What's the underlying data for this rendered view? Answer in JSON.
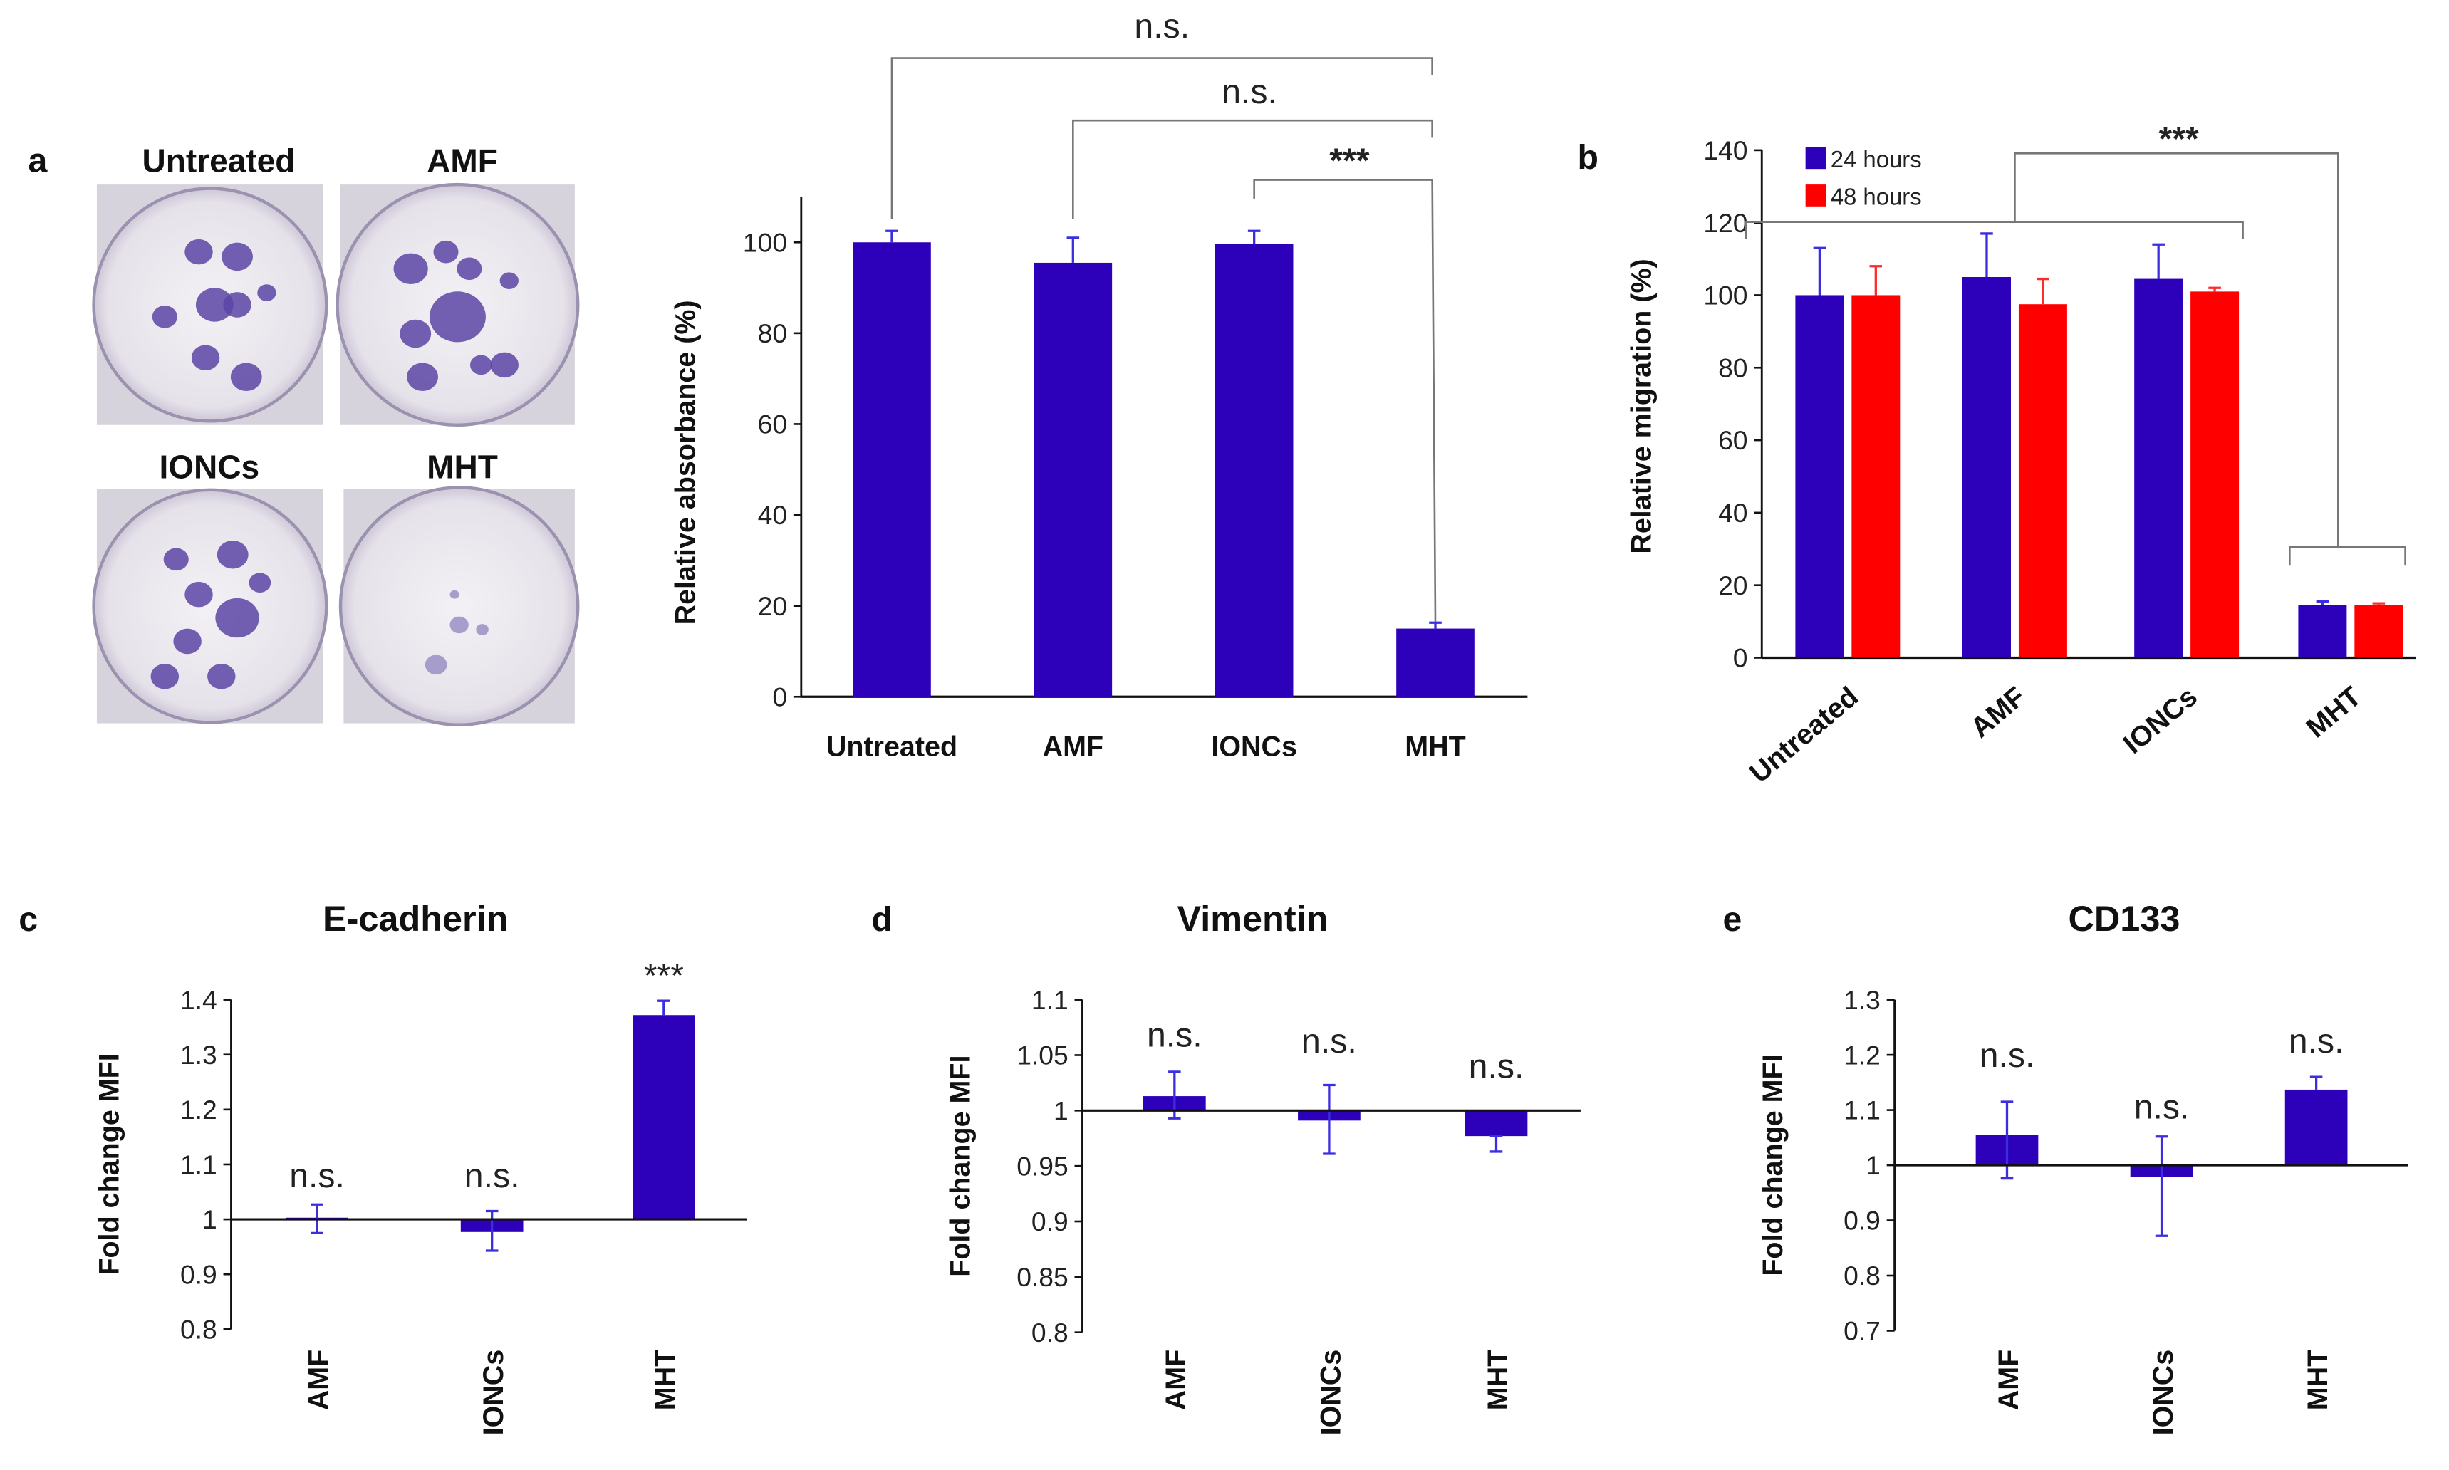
{
  "panel_labels": {
    "a": "a",
    "b": "b",
    "c": "c",
    "d": "d",
    "e": "e"
  },
  "photos": {
    "labels": [
      "Untreated",
      "AMF",
      "IONCs",
      "MHT"
    ]
  },
  "colors": {
    "blue": "#2d00b9",
    "red": "#ff0000",
    "error_blue": "#3b2ee0",
    "error_red": "#ff2a2a"
  },
  "chart_data": [
    {
      "id": "a",
      "type": "bar",
      "categories": [
        "Untreated",
        "AMF",
        "IONCs",
        "MHT"
      ],
      "values": [
        100,
        95.5,
        99.7,
        15
      ],
      "errors_upper": [
        102.5,
        101,
        102.5,
        16.3
      ],
      "ylabel": "Relative absorbance  (%)",
      "yticks": [
        0,
        20,
        40,
        60,
        80,
        100
      ],
      "ylim": [
        0,
        110
      ],
      "comparisons": [
        {
          "from": "Untreated",
          "to": "MHT",
          "label": "n.s."
        },
        {
          "from": "AMF",
          "to": "MHT",
          "label": "n.s."
        },
        {
          "from": "IONCs",
          "to": "MHT",
          "label": "***"
        }
      ]
    },
    {
      "id": "b",
      "type": "bar",
      "categories": [
        "Untreated",
        "AMF",
        "IONCs",
        "MHT"
      ],
      "series": [
        {
          "name": "24 hours",
          "color": "#2d00b9",
          "values": [
            100,
            105,
            104.5,
            14.5
          ],
          "errors_upper": [
            113,
            117,
            114,
            15.5
          ]
        },
        {
          "name": "48 hours",
          "color": "#ff0000",
          "values": [
            100,
            97.5,
            101,
            14.5
          ],
          "errors_upper": [
            108,
            104.5,
            102,
            15
          ]
        }
      ],
      "ylabel": "Relative migration (%)",
      "yticks": [
        0,
        20,
        40,
        60,
        80,
        100,
        120,
        140
      ],
      "ylim": [
        0,
        140
      ],
      "legend": "top-left",
      "comparisons": [
        {
          "from": "Untreated, AMF, IONCs",
          "to": "MHT",
          "label": "***"
        }
      ]
    },
    {
      "id": "c",
      "type": "bar",
      "title": "E-cadherin",
      "categories": [
        "AMF",
        "IONCs",
        "MHT"
      ],
      "baseline": 1,
      "values": [
        1.003,
        0.977,
        1.372
      ],
      "errors": [
        [
          0.975,
          1.027
        ],
        [
          0.943,
          1.015
        ],
        [
          1.372,
          1.398
        ]
      ],
      "significance": [
        "n.s.",
        "n.s.",
        "***"
      ],
      "ylabel": "Fold change MFI",
      "yticks": [
        0.8,
        0.9,
        1,
        1.1,
        1.2,
        1.3,
        1.4
      ],
      "ylim": [
        0.8,
        1.4
      ]
    },
    {
      "id": "d",
      "type": "bar",
      "title": "Vimentin",
      "categories": [
        "AMF",
        "IONCs",
        "MHT"
      ],
      "baseline": 1,
      "values": [
        1.013,
        0.991,
        0.977
      ],
      "errors": [
        [
          0.993,
          1.035
        ],
        [
          0.961,
          1.023
        ],
        [
          0.963,
          0.977
        ]
      ],
      "significance": [
        "n.s.",
        "n.s.",
        "n.s."
      ],
      "ylabel": "Fold change MFI",
      "yticks": [
        0.8,
        0.85,
        0.9,
        0.95,
        1,
        1.05,
        1.1
      ],
      "ylim": [
        0.8,
        1.1
      ]
    },
    {
      "id": "e",
      "type": "bar",
      "title": "CD133",
      "categories": [
        "AMF",
        "IONCs",
        "MHT"
      ],
      "baseline": 1,
      "values": [
        1.055,
        0.979,
        1.137
      ],
      "errors": [
        [
          0.976,
          1.115
        ],
        [
          0.872,
          1.052
        ],
        [
          1.137,
          1.16
        ]
      ],
      "significance": [
        "n.s.",
        "n.s.",
        "n.s."
      ],
      "ylabel": "Fold change MFI",
      "yticks": [
        0.7,
        0.8,
        0.9,
        1,
        1.1,
        1.2,
        1.3
      ],
      "ylim": [
        0.7,
        1.3
      ]
    }
  ]
}
